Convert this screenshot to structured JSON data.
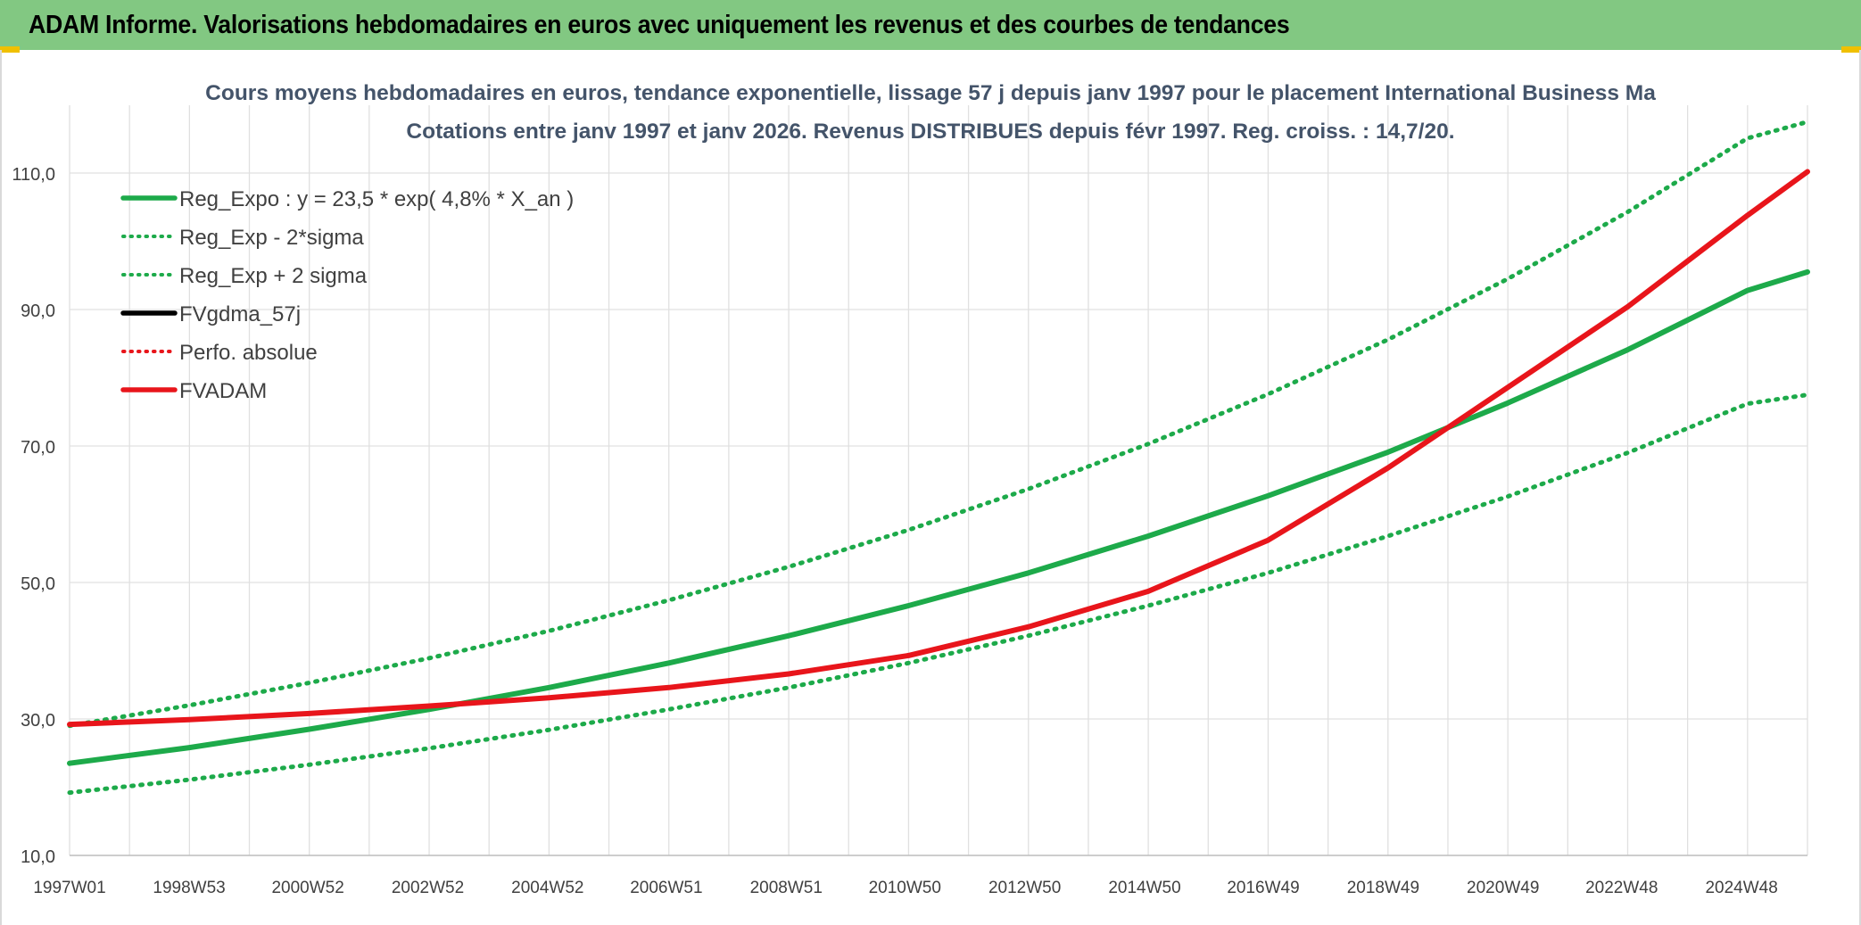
{
  "header": {
    "title": "ADAM Informe. Valorisations hebdomadaires en euros avec uniquement les revenus et des courbes de tendances"
  },
  "colors": {
    "header_bg": "#82c882",
    "trend_green": "#1daa4a",
    "adam_red": "#e8151b",
    "black": "#000000",
    "grid": "#e0e0e0",
    "axis_text": "#404040",
    "title_text": "#44546a"
  },
  "chart_data": {
    "type": "line",
    "title_line1": "Cours moyens hebdomadaires en euros, tendance exponentielle, lissage 57 j depuis janv 1997 pour le placement International Business Ma",
    "title_line2": "Cotations entre janv 1997 et janv 2026. Revenus DISTRIBUES depuis févr 1997. Reg. croiss. : 14,7/20.",
    "x_tick_labels": [
      "1997W01",
      "1998W53",
      "2000W52",
      "2002W52",
      "2004W52",
      "2006W51",
      "2008W51",
      "2010W50",
      "2012W50",
      "2014W50",
      "2016W49",
      "2018W49",
      "2020W49",
      "2022W48",
      "2024W48"
    ],
    "x_range": [
      "1997W01",
      "2026W01"
    ],
    "y_ticks": [
      "10,0",
      "30,0",
      "50,0",
      "70,0",
      "90,0",
      "110,0"
    ],
    "y_range": [
      10,
      120
    ],
    "grid": true,
    "legend_position": "top-left",
    "legend": [
      {
        "label": "Reg_Expo : y = 23,5 * exp( 4,8% *  X_an )",
        "style": "solid",
        "color": "#1daa4a"
      },
      {
        "label": "Reg_Exp - 2*sigma",
        "style": "dotted",
        "color": "#1daa4a"
      },
      {
        "label": "Reg_Exp + 2 sigma",
        "style": "dotted",
        "color": "#1daa4a"
      },
      {
        "label": "FVgdma_57j",
        "style": "solid",
        "color": "#000000"
      },
      {
        "label": "Perfo. absolue",
        "style": "dotted",
        "color": "#e8151b"
      },
      {
        "label": "FVADAM",
        "style": "solid",
        "color": "#e8151b"
      }
    ],
    "x_years": [
      1997,
      1999,
      2001,
      2003,
      2005,
      2007,
      2009,
      2011,
      2013,
      2015,
      2017,
      2019,
      2021,
      2023,
      2025,
      2026
    ],
    "series": [
      {
        "values": [
          23.5,
          25.8,
          28.5,
          31.4,
          34.6,
          38.2,
          42.2,
          46.6,
          51.4,
          56.8,
          62.7,
          69.1,
          76.3,
          84.1,
          92.8,
          95.5
        ]
      },
      {
        "values": [
          19.2,
          21.1,
          23.3,
          25.7,
          28.4,
          31.4,
          34.6,
          38.2,
          42.2,
          46.6,
          51.4,
          56.8,
          62.6,
          69.0,
          76.2,
          77.5
        ]
      },
      {
        "values": [
          29.0,
          32.0,
          35.3,
          38.9,
          42.9,
          47.4,
          52.3,
          57.7,
          63.7,
          70.3,
          77.6,
          85.6,
          94.5,
          104.3,
          115.1,
          117.5
        ]
      },
      {
        "values": [
          29.2,
          29.9,
          30.8,
          31.9,
          33.1,
          34.6,
          36.6,
          39.3,
          43.5,
          48.7,
          56.2,
          66.8,
          78.6,
          90.4,
          103.8,
          110.2
        ]
      },
      {
        "values": [
          29.2,
          29.9,
          30.8,
          31.9,
          33.1,
          34.6,
          36.6,
          39.3,
          43.5,
          48.7,
          56.2,
          66.8,
          78.6,
          90.4,
          103.8,
          110.2
        ]
      },
      {
        "values": [
          29.2,
          29.9,
          30.8,
          31.9,
          33.1,
          34.6,
          36.6,
          39.3,
          43.5,
          48.7,
          56.2,
          66.8,
          78.6,
          90.4,
          103.8,
          110.2
        ]
      }
    ]
  }
}
